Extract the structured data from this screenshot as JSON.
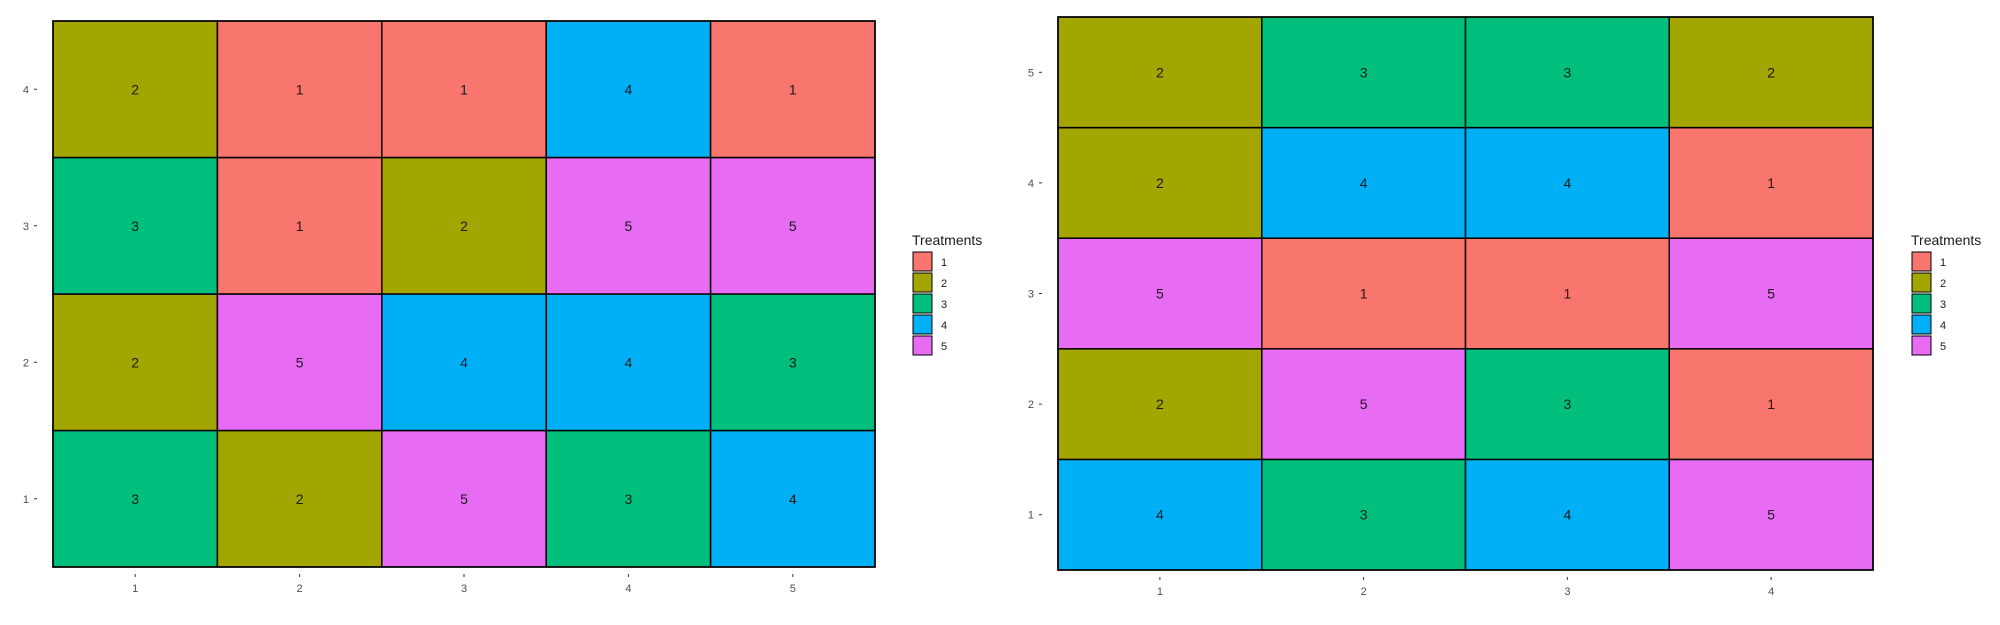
{
  "colors": {
    "1": "#F8766D",
    "2": "#A3A500",
    "3": "#00BF7D",
    "4": "#00B0F6",
    "5": "#E76BF3"
  },
  "chart_data": [
    {
      "type": "heatmap",
      "x_categories": [
        "1",
        "2",
        "3",
        "4",
        "5"
      ],
      "y_categories": [
        "1",
        "2",
        "3",
        "4"
      ],
      "grid": [
        [
          "3",
          "2",
          "5",
          "3",
          "4"
        ],
        [
          "2",
          "5",
          "4",
          "4",
          "3"
        ],
        [
          "3",
          "1",
          "2",
          "5",
          "5"
        ],
        [
          "2",
          "1",
          "1",
          "4",
          "1"
        ]
      ],
      "legend": {
        "title": "Treatments",
        "entries": [
          "1",
          "2",
          "3",
          "4",
          "5"
        ],
        "position": "right"
      }
    },
    {
      "type": "heatmap",
      "x_categories": [
        "1",
        "2",
        "3",
        "4"
      ],
      "y_categories": [
        "1",
        "2",
        "3",
        "4",
        "5"
      ],
      "grid": [
        [
          "4",
          "3",
          "4",
          "5"
        ],
        [
          "2",
          "5",
          "3",
          "1"
        ],
        [
          "5",
          "1",
          "1",
          "5"
        ],
        [
          "2",
          "4",
          "4",
          "1"
        ],
        [
          "2",
          "3",
          "3",
          "2"
        ]
      ],
      "legend": {
        "title": "Treatments",
        "entries": [
          "1",
          "2",
          "3",
          "4",
          "5"
        ],
        "position": "right"
      }
    }
  ]
}
